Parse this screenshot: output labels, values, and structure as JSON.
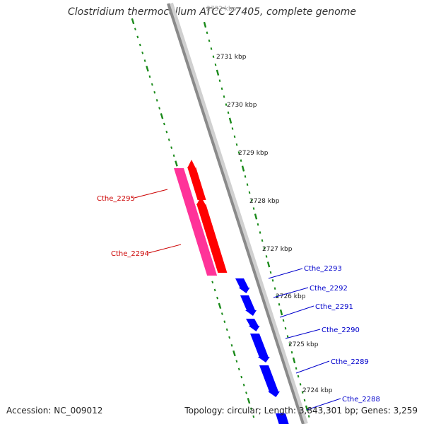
{
  "title": "Clostridium thermocellum ATCC 27405, complete genome",
  "accession_text": "Accession: NC_009012",
  "stats_text": "Topology: circular; Length: 3,843,301 bp; Genes: 3,259",
  "colors": {
    "backbone": "#8a8a8a",
    "tick": "#1a8a1a",
    "reverse_gene": "#ff3399",
    "forward_gene": "#ff0000",
    "blue_gene": "#0000ff",
    "kbp_label": "#222222"
  },
  "kbp_labels": [
    "2732 kbp",
    "2731 kbp",
    "2730 kbp",
    "2729 kbp",
    "2728 kbp",
    "2727 kbp",
    "2726 kbp",
    "2725 kbp",
    "2724 kbp"
  ],
  "genes": [
    {
      "label": "Cthe_2295",
      "color": "#cc0000"
    },
    {
      "label": "Cthe_2294",
      "color": "#cc0000"
    },
    {
      "label": "Cthe_2293",
      "color": "#0000cc"
    },
    {
      "label": "Cthe_2292",
      "color": "#0000cc"
    },
    {
      "label": "Cthe_2291",
      "color": "#0000cc"
    },
    {
      "label": "Cthe_2290",
      "color": "#0000cc"
    },
    {
      "label": "Cthe_2289",
      "color": "#0000cc"
    },
    {
      "label": "Cthe_2288",
      "color": "#0000cc"
    }
  ]
}
